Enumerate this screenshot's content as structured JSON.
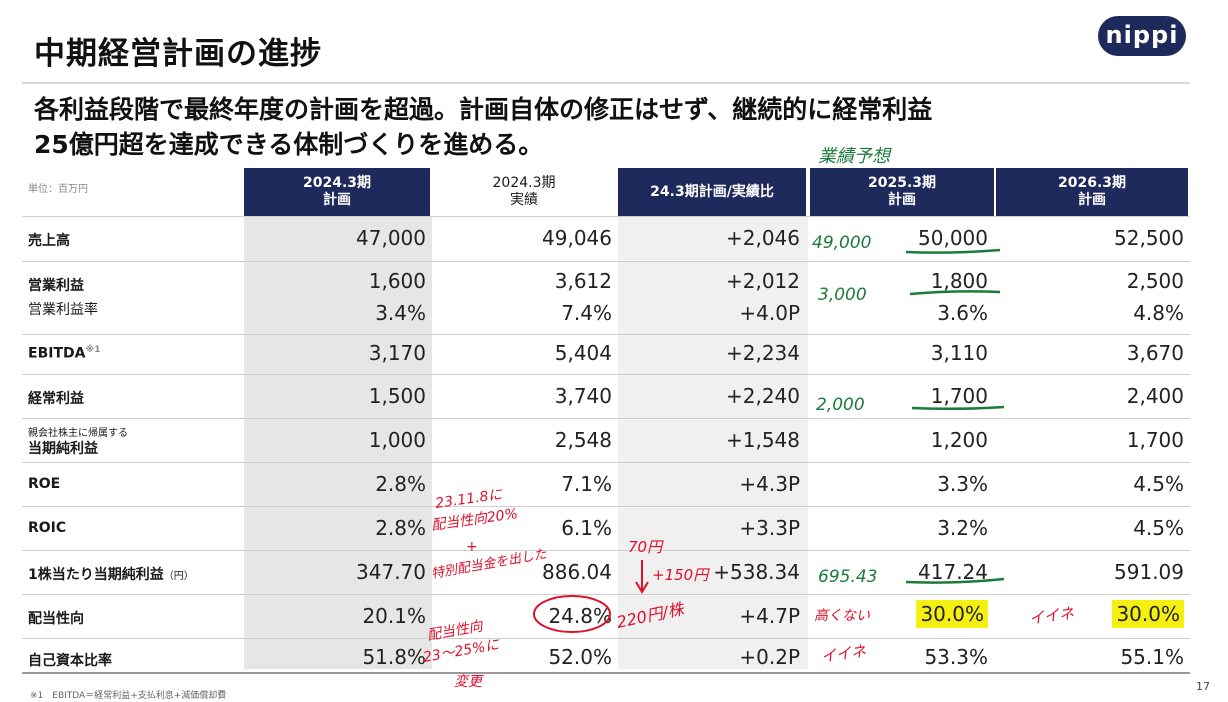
{
  "header": {
    "title": "中期経営計画の進捗",
    "logo_text": "nippi"
  },
  "headline": {
    "line1": "各利益段階で最終年度の計画を超過。計画自体の修正はせず、継続的に経常利益",
    "line2": "25億円超を達成できる体制づくりを進める。"
  },
  "table": {
    "unit_label": "単位：百万円",
    "columns": [
      {
        "line1": "2024.3期",
        "line2": "計画"
      },
      {
        "line1": "2024.3期",
        "line2": "実績"
      },
      {
        "line1": "24.3期計画/実績比",
        "line2": ""
      },
      {
        "line1": "2025.3期",
        "line2": "計画"
      },
      {
        "line1": "2026.3期",
        "line2": "計画"
      }
    ],
    "rows": [
      {
        "label": "売上高",
        "values": [
          "47,000",
          "49,046",
          "+2,046",
          "50,000",
          "52,500"
        ]
      },
      {
        "label": "営業利益",
        "label2": "営業利益率",
        "values": [
          "1,600",
          "3,612",
          "+2,012",
          "1,800",
          "2,500"
        ],
        "values2": [
          "3.4%",
          "7.4%",
          "+4.0P",
          "3.6%",
          "4.8%"
        ]
      },
      {
        "label": "EBITDA",
        "note_mark": "※1",
        "values": [
          "3,170",
          "5,404",
          "+2,234",
          "3,110",
          "3,670"
        ]
      },
      {
        "label": "経常利益",
        "values": [
          "1,500",
          "3,740",
          "+2,240",
          "1,700",
          "2,400"
        ]
      },
      {
        "label_small": "親会社株主に帰属する",
        "label": "当期純利益",
        "values": [
          "1,000",
          "2,548",
          "+1,548",
          "1,200",
          "1,700"
        ]
      },
      {
        "label": "ROE",
        "values": [
          "2.8%",
          "7.1%",
          "+4.3P",
          "3.3%",
          "4.5%"
        ]
      },
      {
        "label": "ROIC",
        "values": [
          "2.8%",
          "6.1%",
          "+3.3P",
          "3.2%",
          "4.5%"
        ]
      },
      {
        "label": "1株当たり当期純利益",
        "label_unit": "（円）",
        "values": [
          "347.70",
          "886.04",
          "+538.34",
          "417.24",
          "591.09"
        ]
      },
      {
        "label": "配当性向",
        "values": [
          "20.1%",
          "24.8%",
          "+4.7P",
          "30.0%",
          "30.0%"
        ]
      },
      {
        "label": "自己資本比率",
        "values": [
          "51.8%",
          "52.0%",
          "+0.2P",
          "53.3%",
          "55.1%"
        ]
      }
    ]
  },
  "handwriting": {
    "forecast_title": "業績予想",
    "sales_forecast": "49,000",
    "op_forecast": "3,000",
    "ordinary_forecast": "2,000",
    "eps_forecast": "695.43",
    "note_roic_a": "23.11.8に",
    "note_roic_b": "配当性向20%",
    "note_roic_c": "+",
    "note_roic_d": "特別配当金を出した",
    "div_note_a": "配当性向",
    "div_note_b": "23〜25%に",
    "div_note_c": "変更",
    "div_70": "70円",
    "div_150": "+150円",
    "div_220": "220円/株",
    "takai": "高くない",
    "iine1": "イイネ",
    "iine2": "イイネ"
  },
  "footer": {
    "footnote": "※1　EBITDA＝経常利益+支払利息+減価償却費",
    "page": "17"
  },
  "colors": {
    "navy": "#1f2a5c",
    "shade": "#e6e6e6",
    "green_ink": "#1c7a3a",
    "red_ink": "#e0102a",
    "highlight": "#f5f012"
  }
}
